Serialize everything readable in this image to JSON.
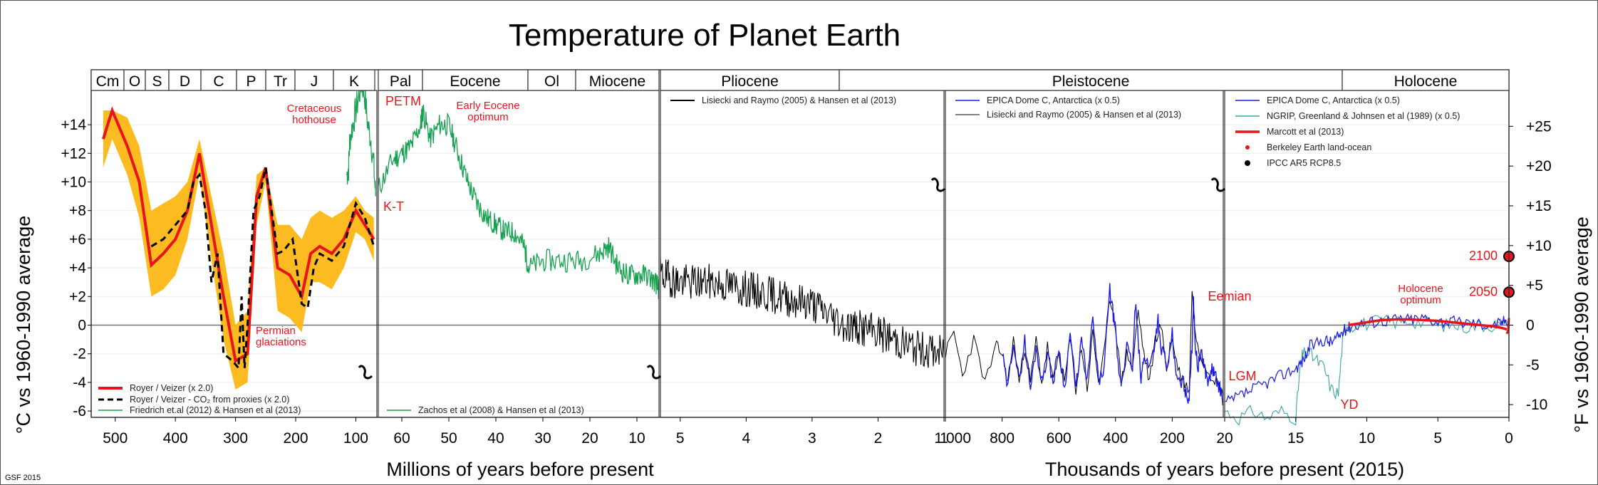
{
  "chart_data": {
    "type": "line",
    "title": "Temperature of Planet Earth",
    "credit": "GSF 2015",
    "ylabel_left": "°C vs 1960-1990 average",
    "ylabel_right": "°F vs 1960-1990 average",
    "ylim_c": [
      -6,
      15
    ],
    "yticks_c": [
      "+14",
      "+12",
      "+10",
      "+8",
      "+6",
      "+4",
      "+2",
      "0",
      "-2",
      "-4",
      "-6"
    ],
    "yticks_f": [
      "+25",
      "+20",
      "+15",
      "+10",
      "+5",
      "0",
      "-5",
      "-10"
    ],
    "xlabel_million": "Millions of years before present",
    "xlabel_thousand": "Thousands of years before present (2015)",
    "eras": [
      "Cm",
      "O",
      "S",
      "D",
      "C",
      "P",
      "Tr",
      "J",
      "K",
      "Pal",
      "Eocene",
      "Ol",
      "Miocene",
      "Pliocene",
      "Pleistocene",
      "Holocene"
    ],
    "panels": [
      {
        "x_range": [
          540,
          65
        ],
        "x_unit": "Myr",
        "scale": "linear",
        "ticks": [
          "500",
          "400",
          "300",
          "200",
          "100"
        ]
      },
      {
        "x_range": [
          65,
          5.3
        ],
        "x_unit": "Myr",
        "scale": "linear",
        "ticks": [
          "60",
          "50",
          "40",
          "30",
          "20",
          "10"
        ]
      },
      {
        "x_range": [
          5.3,
          1
        ],
        "x_unit": "Myr",
        "scale": "linear",
        "ticks": [
          "5",
          "4",
          "3",
          "2",
          "1"
        ]
      },
      {
        "x_range": [
          1000,
          20
        ],
        "x_unit": "kyr",
        "scale": "linear",
        "ticks": [
          "000",
          "800",
          "600",
          "400",
          "200"
        ]
      },
      {
        "x_range": [
          20,
          0
        ],
        "x_unit": "kyr",
        "scale": "linear",
        "ticks": [
          "20",
          "15",
          "10",
          "5",
          "0"
        ]
      }
    ],
    "legends": {
      "panel1": [
        "Royer / Veizer (x 2.0)",
        "Royer / Veizer - CO₂ from proxies (x 2.0)",
        "Friedrich et.al (2012) & Hansen et al (2013)"
      ],
      "panel2": [
        "Zachos et al (2008) & Hansen et al (2013)"
      ],
      "panel3": [
        "Lisiecki and Raymo (2005) & Hansen et al (2013)"
      ],
      "panel4": [
        "EPICA Dome C, Antarctica  (x 0.5)",
        "Lisiecki and Raymo (2005) & Hansen et al (2013)"
      ],
      "panel5": [
        "EPICA Dome C, Antarctica  (x 0.5)",
        "NGRIP, Greenland & Johnsen et al (1989) (x 0.5)",
        "Marcott et al (2013)",
        "Berkeley Earth land-ocean",
        "IPCC AR5 RCP8.5"
      ]
    },
    "annotations": [
      "Cretaceous hothouse",
      "PETM",
      "Early Eocene optimum",
      "K-T",
      "Permian glaciations",
      "Eemian",
      "LGM",
      "YD",
      "Holocene optimum",
      "2100",
      "2050"
    ],
    "series": [
      {
        "name": "Royer / Veizer (x 2.0)",
        "color": "#e8141c",
        "x": [
          520,
          505,
          480,
          460,
          440,
          420,
          400,
          380,
          360,
          340,
          320,
          300,
          280,
          265,
          250,
          230,
          210,
          190,
          175,
          160,
          140,
          120,
          100,
          85,
          70
        ],
        "y": [
          13,
          15,
          12.5,
          10,
          4.2,
          5,
          6,
          8,
          12,
          7,
          2,
          -2.5,
          -2,
          9,
          11,
          4,
          3.5,
          2,
          5,
          5.5,
          5,
          6,
          8,
          7,
          6
        ]
      },
      {
        "name": "Royer / Veizer - CO₂ from proxies (x 2.0)",
        "color": "#000000",
        "x": [
          440,
          420,
          400,
          380,
          370,
          360,
          350,
          340,
          330,
          320,
          305,
          295,
          290,
          285,
          280,
          270,
          260,
          250,
          240,
          230,
          220,
          205,
          190,
          180,
          170,
          160,
          140,
          120,
          100,
          85,
          70
        ],
        "y": [
          5.5,
          6,
          7,
          8,
          10,
          10.5,
          8,
          3,
          5,
          -2,
          -2.5,
          -3,
          2,
          -3,
          0,
          8,
          9,
          11,
          8,
          5,
          5.2,
          6,
          1.5,
          1.2,
          4,
          5,
          4.5,
          5.5,
          8.5,
          7.5,
          5.5
        ]
      },
      {
        "name": "Royer / Veizer band",
        "color": "#fcb714",
        "x_upper": [
          520,
          505,
          480,
          460,
          440,
          420,
          400,
          380,
          360,
          340,
          320,
          300,
          280,
          265,
          250,
          230,
          210,
          190,
          175,
          160,
          140,
          120,
          100,
          85,
          70
        ],
        "y_upper": [
          15,
          15,
          14.5,
          12.5,
          8,
          8.5,
          9,
          10,
          13,
          9,
          5,
          0,
          1,
          10.5,
          11,
          7,
          7,
          6,
          7.5,
          8,
          7.5,
          8,
          9,
          8,
          7.5
        ],
        "y_lower": [
          11,
          13,
          10.5,
          7.5,
          2,
          2.5,
          3.5,
          6,
          10.5,
          4.5,
          -1,
          -4.5,
          -4,
          7,
          10,
          1,
          0.5,
          -0.5,
          3,
          3,
          2.5,
          4,
          6.5,
          6,
          4.5
        ]
      },
      {
        "name": "Friedrich et.al (2012) & Hansen et al (2013)",
        "color": "#15a14f",
        "x": [
          115,
          112,
          110,
          105,
          100,
          95,
          90,
          85,
          80,
          75,
          70,
          67
        ],
        "y": [
          10.5,
          11,
          13,
          14,
          15,
          16,
          17,
          16,
          14,
          13,
          11,
          9
        ]
      },
      {
        "name": "Zachos et al (2008) & Hansen et al (2013)",
        "color": "#15a14f",
        "x": [
          65,
          62,
          60,
          58,
          56,
          55.5,
          54,
          52,
          50,
          48,
          46,
          44,
          42,
          40,
          38,
          36,
          34,
          33,
          30,
          26,
          22,
          18,
          16,
          14,
          12,
          10,
          8,
          6,
          5.3
        ],
        "y": [
          9.5,
          11.5,
          12,
          12.5,
          14,
          15,
          13,
          14,
          14,
          12,
          10,
          8.5,
          7.5,
          7,
          6.5,
          6.5,
          5.5,
          4,
          4.5,
          4.5,
          4.5,
          5,
          5.5,
          4,
          3.5,
          3.5,
          3.5,
          3,
          2.5
        ]
      },
      {
        "name": "Lisiecki and Raymo (2005) & Hansen et al (2013)",
        "color": "#000000",
        "x": [
          5.3,
          5,
          4.5,
          4,
          3.5,
          3,
          2.5,
          2,
          1.5,
          1
        ],
        "y": [
          3.5,
          3,
          3,
          2.5,
          2,
          1.5,
          0,
          -0.5,
          -1.5,
          -2
        ]
      },
      {
        "name": "EPICA Dome C, Antarctica  (x 0.5)",
        "color": "#1a1ae6",
        "x": [
          800,
          780,
          760,
          740,
          720,
          700,
          680,
          660,
          640,
          620,
          600,
          580,
          560,
          540,
          520,
          500,
          480,
          460,
          440,
          420,
          410,
          400,
          390,
          380,
          360,
          340,
          330,
          320,
          310,
          300,
          280,
          260,
          250,
          240,
          230,
          220,
          200,
          190,
          180,
          160,
          150,
          140,
          130,
          125,
          120,
          110,
          100,
          90,
          80,
          70,
          60,
          50,
          40,
          30,
          20
        ],
        "y": [
          -2,
          -4.5,
          -1,
          -4,
          -1,
          -4.5,
          -1.5,
          -4,
          -2,
          -4,
          -1.5,
          -4.5,
          -0.5,
          -4.5,
          -1,
          -4,
          0.5,
          -4,
          -3,
          2.5,
          1,
          -0.5,
          -3,
          -4,
          -1.5,
          -3,
          1.5,
          -1,
          -4,
          -2,
          -3,
          -1,
          0.5,
          -2,
          -1.5,
          -3.5,
          -0.5,
          -3,
          -4,
          -4,
          -5,
          -5,
          -1.5,
          2,
          -1,
          -3,
          -2,
          -2.5,
          -3.5,
          -4,
          -3,
          -3.5,
          -4,
          -4.5,
          -5.5
        ]
      },
      {
        "name": "Lisiecki and Raymo (2005) & Hansen et al (2013) — late Pleistocene",
        "color": "#000000",
        "x": [
          1000,
          970,
          940,
          900,
          860,
          820,
          800,
          780,
          760,
          740,
          720,
          700,
          680,
          660,
          640,
          620,
          600,
          580,
          560,
          540,
          520,
          500,
          480,
          460,
          440,
          420,
          400,
          380,
          360,
          340,
          320,
          300,
          280,
          260,
          240,
          220,
          200,
          180,
          160,
          140,
          130,
          120,
          100,
          80,
          60,
          40,
          20
        ],
        "y": [
          -2,
          -0.5,
          -3.5,
          -1,
          -4,
          -1.5,
          -2,
          -4,
          -1,
          -4,
          -1.5,
          -4,
          -1,
          -4,
          -1.5,
          -4,
          -2,
          -4,
          -1,
          -4.5,
          -1.5,
          -4.5,
          -0.5,
          -4,
          -2,
          2,
          0,
          -4,
          -2,
          -3,
          1,
          -2,
          -4,
          -1,
          0,
          -3,
          -1,
          -3,
          -4,
          -4.5,
          2.5,
          -0.5,
          -2,
          -3,
          -3.5,
          -4,
          -5
        ]
      },
      {
        "name": "EPICA Dome C, Antarctica  (x 0.5) — Holocene",
        "color": "#1a1ae6",
        "x": [
          20,
          19,
          18,
          17,
          16,
          15,
          14.5,
          14,
          13,
          12.5,
          12,
          11.5,
          11,
          10,
          9,
          8,
          7,
          6,
          5,
          4,
          3,
          2,
          1,
          0.5,
          0
        ],
        "y": [
          -5.5,
          -5,
          -4.5,
          -4,
          -3.5,
          -3,
          -2.5,
          -1.5,
          -1,
          -1.2,
          -0.8,
          -0.3,
          0,
          0.2,
          0.3,
          0.4,
          0.4,
          0.5,
          0.3,
          0.2,
          0.2,
          0.1,
          0,
          0.2,
          0.5
        ]
      },
      {
        "name": "NGRIP, Greenland & Johnsen et al (1989) (x 0.5)",
        "color": "#3aa5a6",
        "x": [
          20,
          19,
          18,
          17,
          16,
          15,
          14.7,
          14.5,
          14,
          13.5,
          13,
          12.5,
          12,
          11.7,
          11.5,
          11,
          10,
          9,
          8,
          7,
          6,
          5,
          4,
          3,
          2,
          1,
          0
        ],
        "y": [
          -6,
          -6.5,
          -6,
          -6.5,
          -6,
          -6.5,
          -3,
          -2,
          -2,
          -2.5,
          -3,
          -4.5,
          -4.8,
          -1,
          0,
          0,
          0.1,
          0.3,
          0.2,
          0.3,
          0.2,
          0,
          0,
          -0.1,
          0,
          0,
          0
        ]
      },
      {
        "name": "Marcott et al (2013)",
        "color": "#e8141c",
        "x": [
          11.3,
          10,
          9,
          8,
          7,
          6,
          5,
          4,
          3,
          2,
          1,
          0.5,
          0.15
        ],
        "y": [
          0,
          0.2,
          0.35,
          0.4,
          0.4,
          0.35,
          0.3,
          0.2,
          0.1,
          0,
          -0.1,
          -0.2,
          -0.3
        ]
      },
      {
        "name": "Berkeley Earth land-ocean",
        "color": "#e8141c",
        "x": [
          0.165,
          0.1,
          0.05,
          0.02,
          0
        ],
        "y": [
          -0.6,
          -0.5,
          -0.3,
          0.1,
          0.5
        ]
      },
      {
        "name": "IPCC AR5 RCP8.5",
        "color": "#000000",
        "points": [
          {
            "label": "2050",
            "y": 2.3
          },
          {
            "label": "2100",
            "y": 4.8
          }
        ]
      }
    ]
  }
}
